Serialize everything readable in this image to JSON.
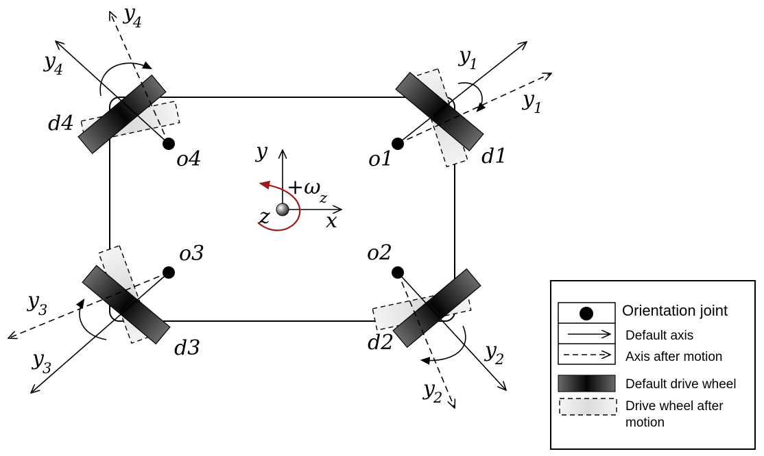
{
  "labels": {
    "y": "y",
    "x": "x",
    "z": "z",
    "omega": "+ω",
    "omega_sub": "z",
    "y_letter": "y",
    "o1": "o1",
    "o2": "o2",
    "o3": "o3",
    "o4": "o4",
    "d1": "d1",
    "d2": "d2",
    "d3": "d3",
    "d4": "d4",
    "sub1": "1",
    "sub2": "2",
    "sub3": "3",
    "sub4": "4"
  },
  "legend": {
    "joint": "Orientation joint",
    "default_axis": "Default axis",
    "axis_after": "Axis after motion",
    "default_wheel": "Default drive wheel",
    "wheel_after_1": "Drive wheel after",
    "wheel_after_2": "motion"
  },
  "colors": {
    "rotation_arrow": "#a01818",
    "wheel_dark": "#111111",
    "wheel_light": "#e6e6e6"
  }
}
